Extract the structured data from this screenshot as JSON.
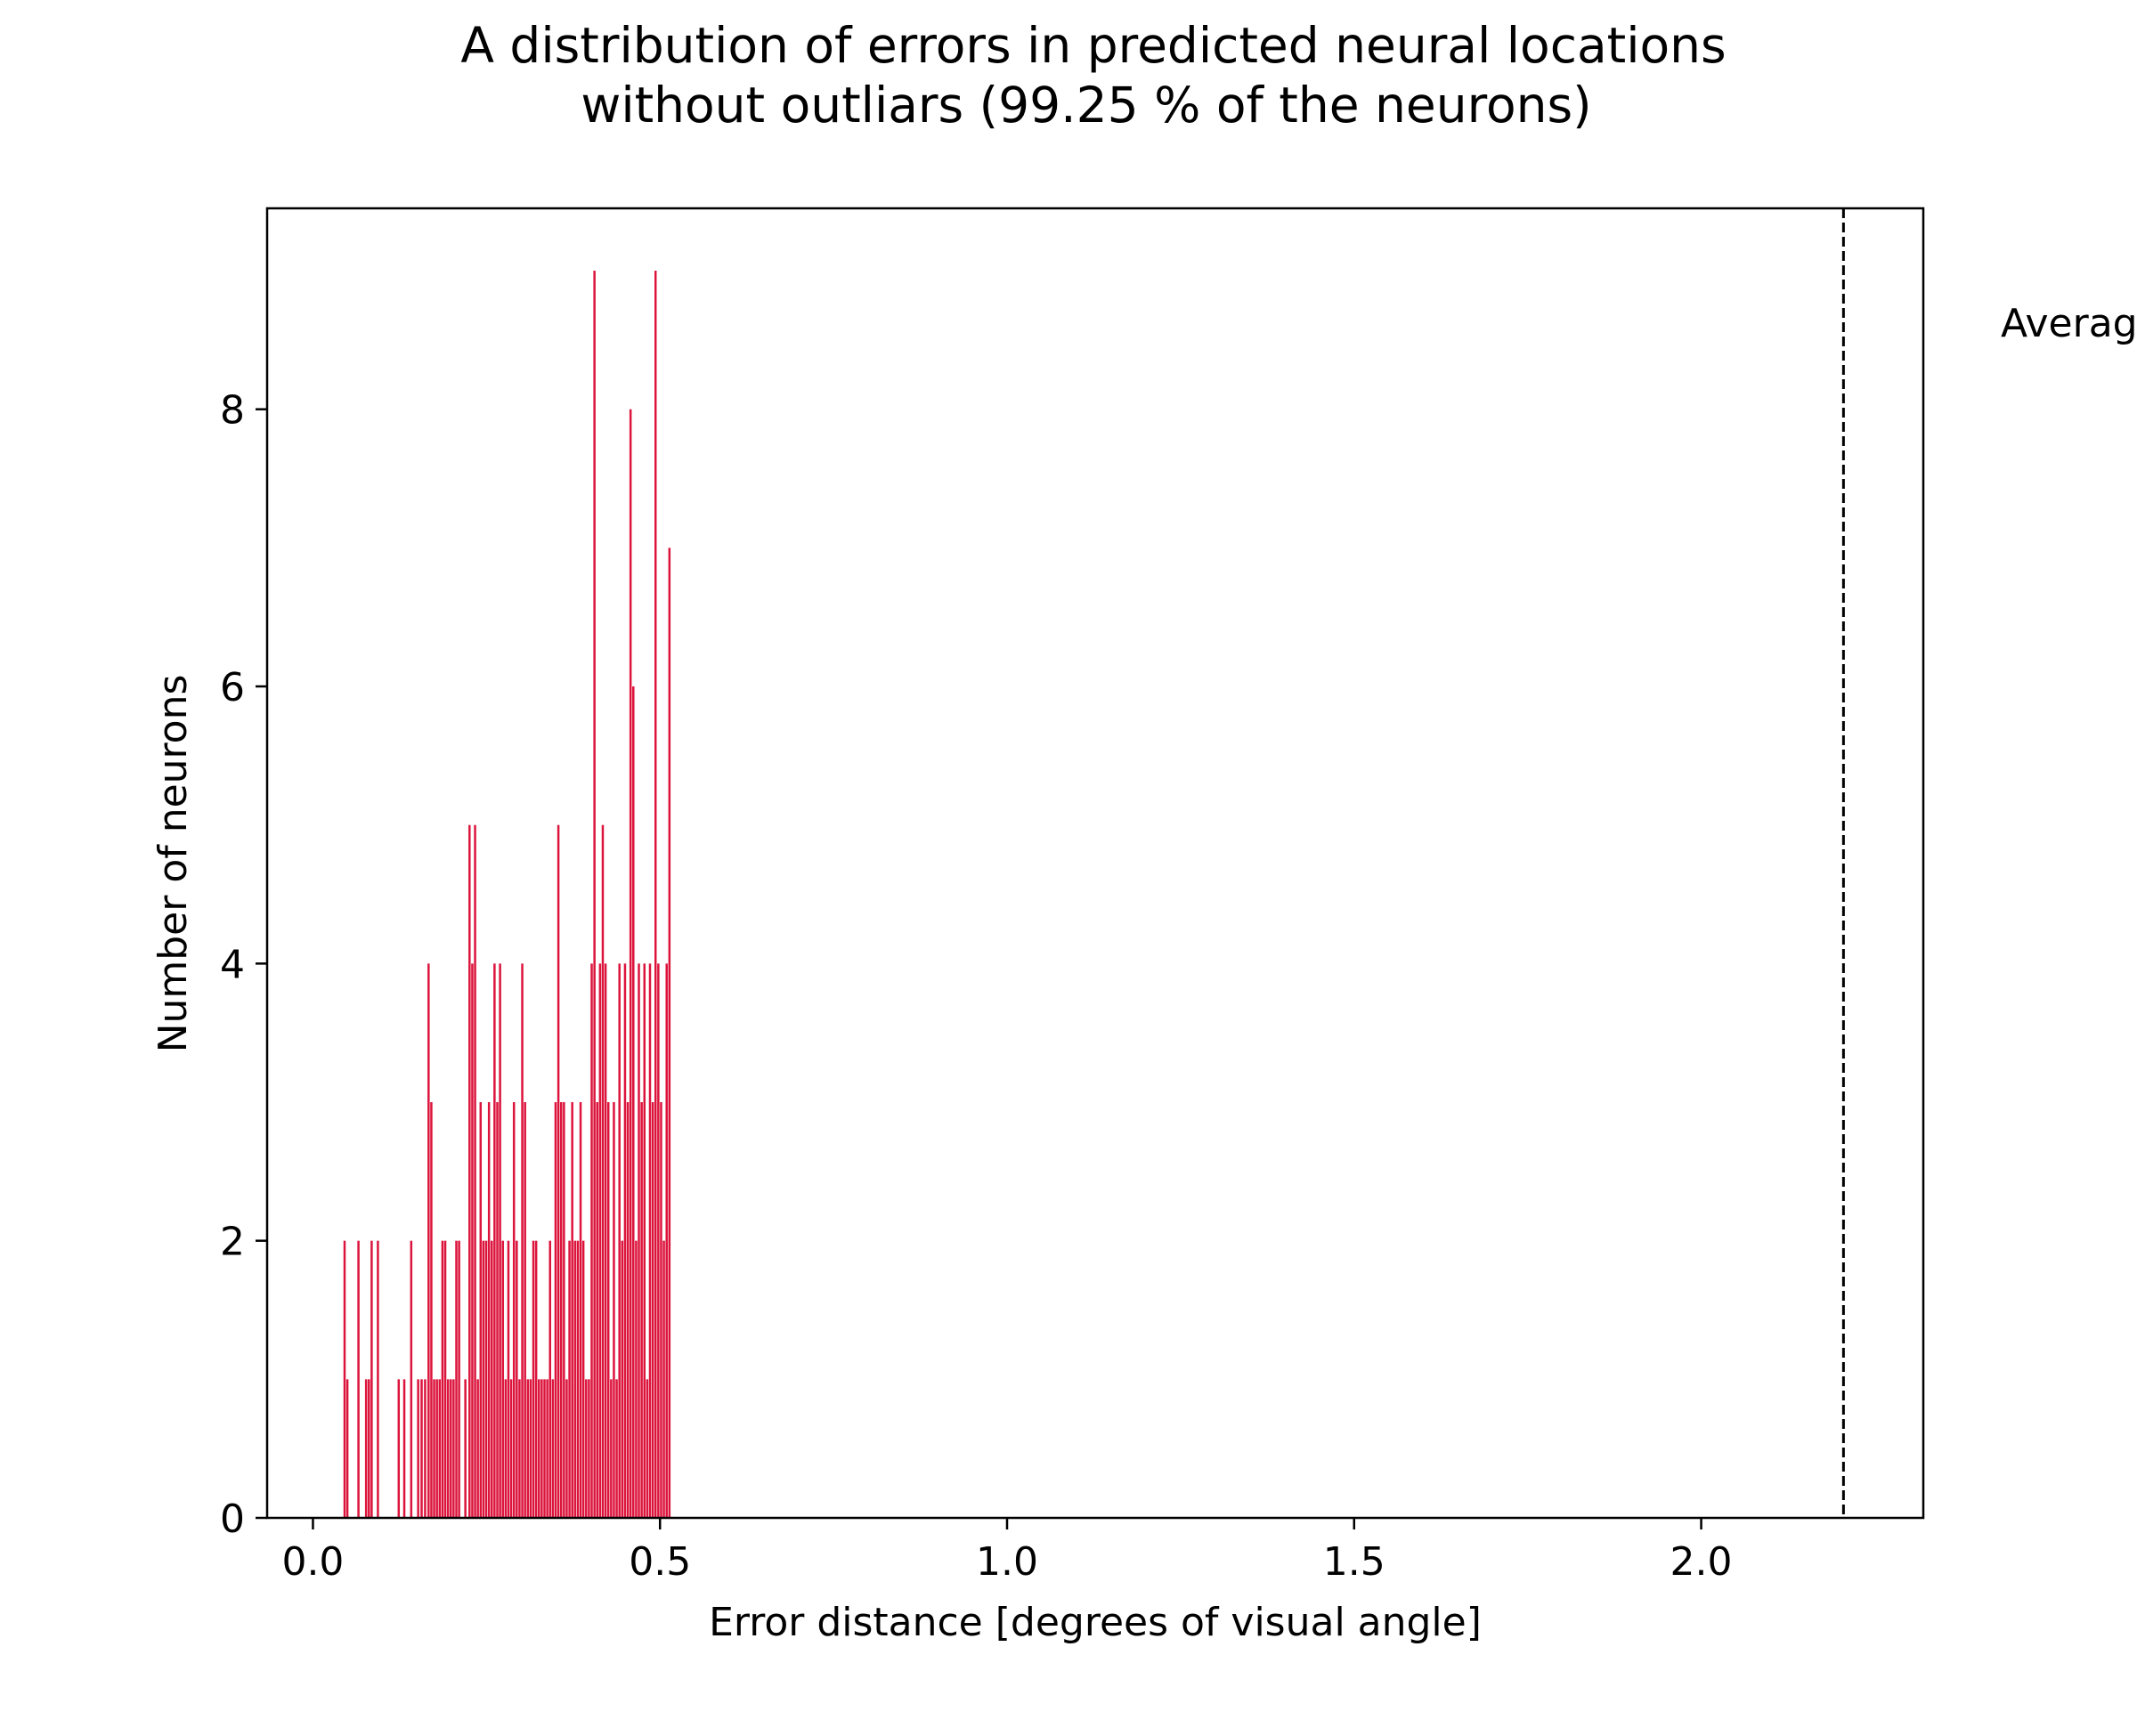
{
  "chart_data": {
    "type": "bar",
    "title_lines": [
      "A distribution of errors in predicted neural locations",
      "without outliars (99.25 % of the neurons)"
    ],
    "xlabel": "Error distance [degrees of visual angle]",
    "ylabel": "Number of neurons",
    "xlim": [
      -0.066,
      2.32
    ],
    "ylim": [
      0,
      9.45
    ],
    "xticks": [
      0.0,
      0.5,
      1.0,
      1.5,
      2.0
    ],
    "xtick_labels": [
      "0.0",
      "0.5",
      "1.0",
      "1.5",
      "2.0"
    ],
    "yticks": [
      0,
      2,
      4,
      6,
      8
    ],
    "ytick_labels": [
      "0",
      "2",
      "4",
      "6",
      "8"
    ],
    "grid": false,
    "bar_color": "#dc143c",
    "bin_width": 0.0032,
    "bins": [
      {
        "x": 0.044,
        "count": 2
      },
      {
        "x": 0.048,
        "count": 1
      },
      {
        "x": 0.064,
        "count": 2
      },
      {
        "x": 0.075,
        "count": 1
      },
      {
        "x": 0.079,
        "count": 1
      },
      {
        "x": 0.083,
        "count": 2
      },
      {
        "x": 0.092,
        "count": 2
      },
      {
        "x": 0.122,
        "count": 1
      },
      {
        "x": 0.13,
        "count": 1
      },
      {
        "x": 0.14,
        "count": 2
      },
      {
        "x": 0.15,
        "count": 1
      },
      {
        "x": 0.155,
        "count": 1
      },
      {
        "x": 0.16,
        "count": 1
      },
      {
        "x": 0.165,
        "count": 4
      },
      {
        "x": 0.169,
        "count": 3
      },
      {
        "x": 0.173,
        "count": 1
      },
      {
        "x": 0.177,
        "count": 1
      },
      {
        "x": 0.181,
        "count": 1
      },
      {
        "x": 0.185,
        "count": 2
      },
      {
        "x": 0.189,
        "count": 2
      },
      {
        "x": 0.193,
        "count": 1
      },
      {
        "x": 0.197,
        "count": 1
      },
      {
        "x": 0.201,
        "count": 1
      },
      {
        "x": 0.205,
        "count": 2
      },
      {
        "x": 0.209,
        "count": 2
      },
      {
        "x": 0.218,
        "count": 1
      },
      {
        "x": 0.224,
        "count": 5
      },
      {
        "x": 0.228,
        "count": 4
      },
      {
        "x": 0.232,
        "count": 5
      },
      {
        "x": 0.236,
        "count": 1
      },
      {
        "x": 0.24,
        "count": 3
      },
      {
        "x": 0.244,
        "count": 2
      },
      {
        "x": 0.248,
        "count": 2
      },
      {
        "x": 0.252,
        "count": 3
      },
      {
        "x": 0.256,
        "count": 2
      },
      {
        "x": 0.26,
        "count": 4
      },
      {
        "x": 0.264,
        "count": 3
      },
      {
        "x": 0.268,
        "count": 4
      },
      {
        "x": 0.272,
        "count": 2
      },
      {
        "x": 0.276,
        "count": 1
      },
      {
        "x": 0.28,
        "count": 2
      },
      {
        "x": 0.284,
        "count": 1
      },
      {
        "x": 0.288,
        "count": 3
      },
      {
        "x": 0.292,
        "count": 2
      },
      {
        "x": 0.296,
        "count": 1
      },
      {
        "x": 0.3,
        "count": 4
      },
      {
        "x": 0.304,
        "count": 3
      },
      {
        "x": 0.308,
        "count": 1
      },
      {
        "x": 0.312,
        "count": 1
      },
      {
        "x": 0.316,
        "count": 2
      },
      {
        "x": 0.32,
        "count": 2
      },
      {
        "x": 0.324,
        "count": 1
      },
      {
        "x": 0.328,
        "count": 1
      },
      {
        "x": 0.332,
        "count": 1
      },
      {
        "x": 0.336,
        "count": 1
      },
      {
        "x": 0.34,
        "count": 2
      },
      {
        "x": 0.344,
        "count": 1
      },
      {
        "x": 0.348,
        "count": 3
      },
      {
        "x": 0.352,
        "count": 5
      },
      {
        "x": 0.356,
        "count": 3
      },
      {
        "x": 0.36,
        "count": 3
      },
      {
        "x": 0.364,
        "count": 1
      },
      {
        "x": 0.368,
        "count": 2
      },
      {
        "x": 0.372,
        "count": 3
      },
      {
        "x": 0.376,
        "count": 2
      },
      {
        "x": 0.38,
        "count": 2
      },
      {
        "x": 0.384,
        "count": 3
      },
      {
        "x": 0.388,
        "count": 2
      },
      {
        "x": 0.392,
        "count": 1
      },
      {
        "x": 0.396,
        "count": 1
      },
      {
        "x": 0.4,
        "count": 4
      },
      {
        "x": 0.404,
        "count": 9
      },
      {
        "x": 0.408,
        "count": 3
      },
      {
        "x": 0.412,
        "count": 4
      },
      {
        "x": 0.416,
        "count": 5
      },
      {
        "x": 0.42,
        "count": 4
      },
      {
        "x": 0.424,
        "count": 3
      },
      {
        "x": 0.428,
        "count": 1
      },
      {
        "x": 0.432,
        "count": 3
      },
      {
        "x": 0.436,
        "count": 1
      },
      {
        "x": 0.44,
        "count": 4
      },
      {
        "x": 0.444,
        "count": 2
      },
      {
        "x": 0.448,
        "count": 4
      },
      {
        "x": 0.452,
        "count": 3
      },
      {
        "x": 0.456,
        "count": 8
      },
      {
        "x": 0.46,
        "count": 6
      },
      {
        "x": 0.464,
        "count": 2
      },
      {
        "x": 0.468,
        "count": 4
      },
      {
        "x": 0.472,
        "count": 3
      },
      {
        "x": 0.476,
        "count": 4
      },
      {
        "x": 0.48,
        "count": 1
      },
      {
        "x": 0.484,
        "count": 4
      },
      {
        "x": 0.488,
        "count": 3
      },
      {
        "x": 0.492,
        "count": 9
      },
      {
        "x": 0.496,
        "count": 4
      },
      {
        "x": 0.5,
        "count": 3
      },
      {
        "x": 0.504,
        "count": 2
      },
      {
        "x": 0.508,
        "count": 4
      },
      {
        "x": 0.512,
        "count": 7
      }
    ],
    "mean_line": {
      "x": 2.205,
      "style": "dashed",
      "color": "#000000"
    },
    "annotation": {
      "text": "Averag"
    }
  }
}
